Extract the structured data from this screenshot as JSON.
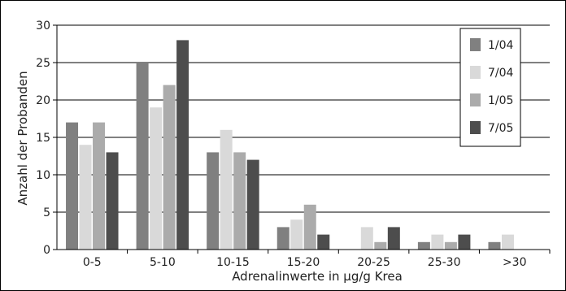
{
  "chart_data": {
    "type": "bar",
    "xlabel": "Adrenalinwerte  in µg/g Krea",
    "ylabel": "Anzahl der Probanden",
    "categories": [
      "0-5",
      "5-10",
      "10-15",
      "15-20",
      "20-25",
      "25-30",
      ">30"
    ],
    "ylim": [
      0,
      30
    ],
    "yticks": [
      0,
      5,
      10,
      15,
      20,
      25,
      30
    ],
    "grid": true,
    "legend_position": "top-right",
    "series": [
      {
        "name": "1/04",
        "color": "#808080",
        "values": [
          17,
          25,
          13,
          3,
          0,
          1,
          1
        ]
      },
      {
        "name": "7/04",
        "color": "#d9d9d9",
        "values": [
          14,
          19,
          16,
          4,
          3,
          2,
          2
        ]
      },
      {
        "name": "1/05",
        "color": "#ababab",
        "values": [
          17,
          22,
          13,
          6,
          1,
          1,
          0
        ]
      },
      {
        "name": "7/05",
        "color": "#4d4d4d",
        "values": [
          13,
          28,
          12,
          2,
          3,
          2,
          0
        ]
      }
    ]
  }
}
